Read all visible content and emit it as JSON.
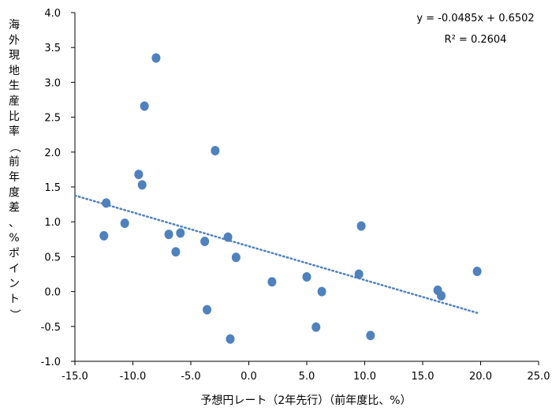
{
  "chart_data": {
    "type": "scatter",
    "title": "",
    "xlabel": "予想円レート（2年先行）（前年度比、%）",
    "ylabel": "海外現地生産比率（前年度差、%ポイント）",
    "xlim": [
      -15,
      25
    ],
    "ylim": [
      -1,
      4
    ],
    "xticks": [
      -15,
      -10,
      -5,
      0,
      5,
      10,
      15,
      20,
      25
    ],
    "yticks": [
      -1,
      -0.5,
      0,
      0.5,
      1,
      1.5,
      2,
      2.5,
      3,
      3.5,
      4
    ],
    "xtick_labels": [
      "-15.0",
      "-10.0",
      "-5.0",
      "0.0",
      "5.0",
      "10.0",
      "15.0",
      "20.0",
      "25.0"
    ],
    "ytick_labels": [
      "-1.0",
      "-0.5",
      "0.0",
      "0.5",
      "1.0",
      "1.5",
      "2.0",
      "2.5",
      "3.0",
      "3.5",
      "4.0"
    ],
    "grid": false,
    "marker_color": "#4f81bd",
    "trendline_color": "#4f81bd",
    "series": [
      {
        "points": [
          {
            "x": -12.5,
            "y": 0.8
          },
          {
            "x": -12.3,
            "y": 1.27
          },
          {
            "x": -10.7,
            "y": 0.98
          },
          {
            "x": -9.5,
            "y": 1.68
          },
          {
            "x": -9.2,
            "y": 1.53
          },
          {
            "x": -9.0,
            "y": 2.66
          },
          {
            "x": -8.0,
            "y": 3.35
          },
          {
            "x": -6.9,
            "y": 0.82
          },
          {
            "x": -6.3,
            "y": 0.57
          },
          {
            "x": -5.9,
            "y": 0.84
          },
          {
            "x": -3.8,
            "y": 0.72
          },
          {
            "x": -3.6,
            "y": -0.26
          },
          {
            "x": -2.9,
            "y": 2.02
          },
          {
            "x": -1.8,
            "y": 0.78
          },
          {
            "x": -1.6,
            "y": -0.68
          },
          {
            "x": -1.1,
            "y": 0.49
          },
          {
            "x": 2.0,
            "y": 0.14
          },
          {
            "x": 5.0,
            "y": 0.21
          },
          {
            "x": 5.8,
            "y": -0.51
          },
          {
            "x": 6.3,
            "y": 0.0
          },
          {
            "x": 9.5,
            "y": 0.25
          },
          {
            "x": 9.7,
            "y": 0.94
          },
          {
            "x": 10.5,
            "y": -0.63
          },
          {
            "x": 16.3,
            "y": 0.02
          },
          {
            "x": 16.6,
            "y": -0.06
          },
          {
            "x": 19.7,
            "y": 0.29
          }
        ]
      }
    ],
    "trendline": {
      "slope": -0.0485,
      "intercept": 0.6502,
      "x_range": [
        -15,
        19.7
      ],
      "equation": "y = -0.0485x + 0.6502",
      "r2": "R² = 0.2604"
    }
  }
}
